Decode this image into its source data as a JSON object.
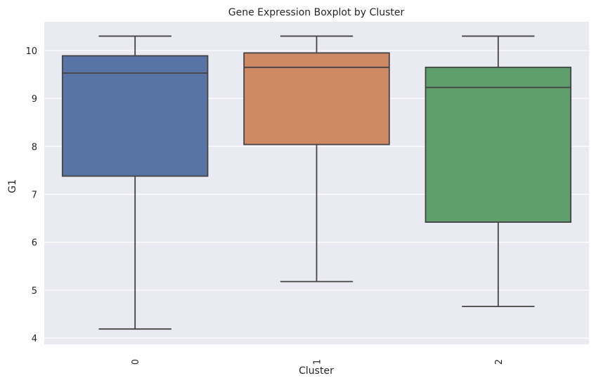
{
  "chart_data": {
    "type": "boxplot",
    "title": "Gene Expression Boxplot by Cluster",
    "xlabel": "Cluster",
    "ylabel": "G1",
    "categories": [
      "0",
      "1",
      "2"
    ],
    "ylim": [
      3.87,
      10.6
    ],
    "yticks": [
      4,
      5,
      6,
      7,
      8,
      9,
      10
    ],
    "grid": true,
    "background": "#eaeaf2",
    "line_color": "#444444",
    "boxes": [
      {
        "category": "0",
        "whisker_low": 4.19,
        "q1": 7.38,
        "median": 9.53,
        "q3": 9.89,
        "whisker_high": 10.3,
        "color": "#5874a6"
      },
      {
        "category": "1",
        "whisker_low": 5.18,
        "q1": 8.04,
        "median": 9.65,
        "q3": 9.95,
        "whisker_high": 10.3,
        "color": "#cf8963"
      },
      {
        "category": "2",
        "whisker_low": 4.66,
        "q1": 6.42,
        "median": 9.23,
        "q3": 9.65,
        "whisker_high": 10.3,
        "color": "#5f9f6d"
      }
    ]
  }
}
